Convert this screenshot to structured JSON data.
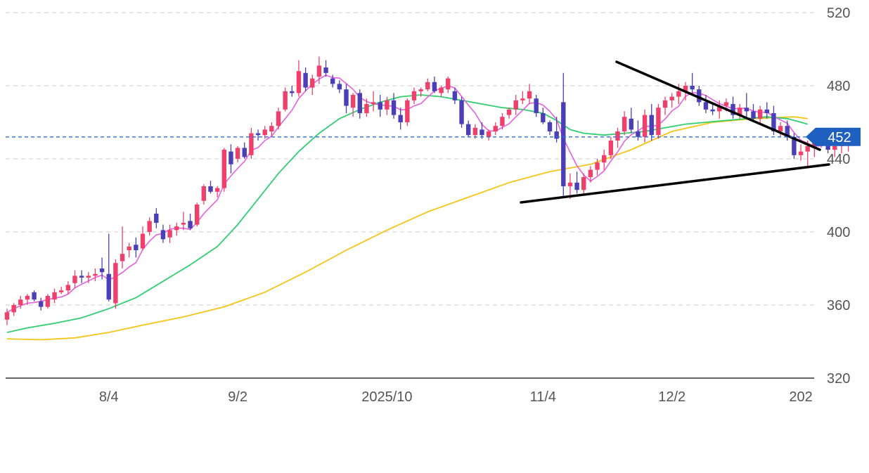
{
  "chart_data": {
    "type": "candlestick",
    "y_ticks": [
      320,
      360,
      400,
      440,
      480,
      520
    ],
    "x_tick_labels": [
      {
        "label": "8/4",
        "index": 15
      },
      {
        "label": "9/2",
        "index": 34
      },
      {
        "label": "2025/10",
        "index": 56
      },
      {
        "label": "11/4",
        "index": 79
      },
      {
        "label": "12/2",
        "index": 98
      },
      {
        "label": "202",
        "index": 117
      }
    ],
    "last_price": 452,
    "grid": "horizontal-dashed",
    "colors": {
      "up": "#ef3f6b",
      "down": "#4a3fb8",
      "ma_short": "#e85fe0",
      "ma_mid": "#2fcf6f",
      "ma_long": "#f5c518",
      "last_price_line": "#2f6fd6",
      "last_price_badge": "#1f5fbf",
      "grid": "#cccccc",
      "trendline": "#000000"
    },
    "candles": [
      [
        352,
        358,
        349,
        356
      ],
      [
        356,
        361,
        354,
        360
      ],
      [
        360,
        365,
        358,
        363
      ],
      [
        363,
        366,
        360,
        365
      ],
      [
        367,
        368,
        362,
        363
      ],
      [
        362,
        364,
        357,
        359
      ],
      [
        359,
        366,
        358,
        365
      ],
      [
        363,
        369,
        361,
        367
      ],
      [
        367,
        370,
        366,
        368
      ],
      [
        368,
        373,
        366,
        371
      ],
      [
        372,
        379,
        369,
        376
      ],
      [
        376,
        379,
        372,
        375
      ],
      [
        375,
        378,
        372,
        376
      ],
      [
        376,
        380,
        373,
        377
      ],
      [
        380,
        386,
        374,
        378
      ],
      [
        377,
        399,
        362,
        363
      ],
      [
        361,
        385,
        358,
        383
      ],
      [
        384,
        403,
        380,
        388
      ],
      [
        390,
        394,
        386,
        392
      ],
      [
        393,
        397,
        386,
        390
      ],
      [
        391,
        403,
        390,
        399
      ],
      [
        400,
        408,
        398,
        406
      ],
      [
        410,
        413,
        402,
        405
      ],
      [
        401,
        404,
        394,
        396
      ],
      [
        397,
        404,
        394,
        401
      ],
      [
        401,
        405,
        398,
        403
      ],
      [
        404,
        411,
        401,
        405
      ],
      [
        406,
        410,
        401,
        402
      ],
      [
        404,
        416,
        403,
        415
      ],
      [
        417,
        426,
        415,
        425
      ],
      [
        425,
        428,
        421,
        422
      ],
      [
        422,
        425,
        419,
        424
      ],
      [
        424,
        446,
        422,
        445
      ],
      [
        444,
        448,
        432,
        437
      ],
      [
        440,
        447,
        438,
        446
      ],
      [
        446,
        449,
        440,
        441
      ],
      [
        442,
        457,
        440,
        454
      ],
      [
        454,
        456,
        450,
        453
      ],
      [
        453,
        458,
        451,
        456
      ],
      [
        455,
        460,
        452,
        458
      ],
      [
        458,
        468,
        456,
        466
      ],
      [
        467,
        479,
        466,
        477
      ],
      [
        477,
        480,
        474,
        476
      ],
      [
        476,
        494,
        474,
        488
      ],
      [
        487,
        490,
        477,
        479
      ],
      [
        479,
        486,
        475,
        484
      ],
      [
        485,
        496,
        481,
        491
      ],
      [
        490,
        494,
        485,
        487
      ],
      [
        484,
        486,
        479,
        481
      ],
      [
        481,
        483,
        476,
        478
      ],
      [
        478,
        481,
        465,
        469
      ],
      [
        468,
        476,
        463,
        475
      ],
      [
        476,
        478,
        462,
        465
      ],
      [
        465,
        473,
        463,
        470
      ],
      [
        470,
        477,
        466,
        471
      ],
      [
        471,
        475,
        463,
        467
      ],
      [
        467,
        474,
        464,
        472
      ],
      [
        472,
        476,
        462,
        464
      ],
      [
        464,
        468,
        456,
        460
      ],
      [
        460,
        473,
        458,
        472
      ],
      [
        472,
        479,
        470,
        477
      ],
      [
        477,
        479,
        474,
        478
      ],
      [
        478,
        484,
        477,
        482
      ],
      [
        482,
        485,
        476,
        477
      ],
      [
        476,
        480,
        474,
        479
      ],
      [
        478,
        485,
        476,
        484
      ],
      [
        477,
        479,
        470,
        472
      ],
      [
        472,
        474,
        457,
        459
      ],
      [
        459,
        461,
        452,
        453
      ],
      [
        453,
        459,
        451,
        457
      ],
      [
        456,
        460,
        451,
        453
      ],
      [
        452,
        456,
        450,
        455
      ],
      [
        455,
        460,
        453,
        458
      ],
      [
        458,
        465,
        456,
        463
      ],
      [
        464,
        468,
        462,
        467
      ],
      [
        467,
        475,
        464,
        472
      ],
      [
        472,
        477,
        470,
        473
      ],
      [
        473,
        481,
        470,
        477
      ],
      [
        473,
        475,
        463,
        465
      ],
      [
        465,
        468,
        459,
        460
      ],
      [
        460,
        461,
        453,
        455
      ],
      [
        455,
        463,
        449,
        451
      ],
      [
        471,
        487,
        419,
        425
      ],
      [
        425,
        432,
        418,
        427
      ],
      [
        427,
        433,
        421,
        423
      ],
      [
        423,
        432,
        421,
        430
      ],
      [
        430,
        436,
        427,
        434
      ],
      [
        434,
        440,
        431,
        438
      ],
      [
        438,
        445,
        434,
        442
      ],
      [
        442,
        452,
        440,
        450
      ],
      [
        450,
        457,
        446,
        455
      ],
      [
        455,
        466,
        453,
        463
      ],
      [
        462,
        468,
        454,
        456
      ],
      [
        455,
        461,
        450,
        452
      ],
      [
        452,
        467,
        449,
        464
      ],
      [
        464,
        470,
        450,
        453
      ],
      [
        453,
        470,
        451,
        468
      ],
      [
        468,
        474,
        464,
        472
      ],
      [
        472,
        476,
        468,
        474
      ],
      [
        474,
        481,
        470,
        477
      ],
      [
        477,
        482,
        472,
        480
      ],
      [
        480,
        487,
        476,
        478
      ],
      [
        478,
        480,
        469,
        471
      ],
      [
        471,
        475,
        465,
        467
      ],
      [
        467,
        470,
        464,
        466
      ],
      [
        466,
        472,
        462,
        469
      ],
      [
        469,
        473,
        466,
        471
      ],
      [
        470,
        474,
        462,
        464
      ],
      [
        464,
        470,
        462,
        468
      ],
      [
        468,
        476,
        462,
        466
      ],
      [
        466,
        470,
        460,
        462
      ],
      [
        462,
        469,
        459,
        467
      ],
      [
        467,
        471,
        462,
        465
      ],
      [
        465,
        469,
        453,
        455
      ],
      [
        455,
        460,
        452,
        458
      ],
      [
        458,
        461,
        450,
        452
      ],
      [
        452,
        454,
        440,
        442
      ],
      [
        442,
        448,
        439,
        444
      ],
      [
        444,
        450,
        436,
        447
      ],
      [
        447,
        451,
        441,
        449
      ],
      [
        449,
        456,
        446,
        454
      ],
      [
        454,
        457,
        443,
        445
      ],
      [
        445,
        452,
        441,
        447
      ],
      [
        447,
        451,
        443,
        448
      ],
      [
        448,
        453,
        444,
        451
      ]
    ],
    "ma_mid": [
      [
        0,
        345
      ],
      [
        3,
        347.5
      ],
      [
        7,
        350
      ],
      [
        11,
        353
      ],
      [
        15,
        358
      ],
      [
        19,
        364
      ],
      [
        23,
        373
      ],
      [
        27,
        382
      ],
      [
        31,
        392
      ],
      [
        34,
        404
      ],
      [
        37,
        418
      ],
      [
        40,
        432
      ],
      [
        43,
        444
      ],
      [
        46,
        454
      ],
      [
        49,
        462
      ],
      [
        52,
        467
      ],
      [
        55,
        471
      ],
      [
        58,
        474
      ],
      [
        61,
        475
      ],
      [
        64,
        474
      ],
      [
        67,
        472
      ],
      [
        70,
        470
      ],
      [
        73,
        468
      ],
      [
        76,
        467
      ],
      [
        79,
        465
      ],
      [
        81,
        461
      ],
      [
        83,
        456
      ],
      [
        85,
        454
      ],
      [
        88,
        453
      ],
      [
        91,
        454
      ],
      [
        94,
        455
      ],
      [
        97,
        457
      ],
      [
        100,
        459
      ],
      [
        103,
        460
      ],
      [
        106,
        461
      ],
      [
        109,
        462
      ],
      [
        112,
        463
      ],
      [
        115,
        462
      ],
      [
        118,
        459
      ]
    ],
    "ma_long": [
      [
        0,
        341.5
      ],
      [
        5,
        341
      ],
      [
        10,
        342
      ],
      [
        15,
        345
      ],
      [
        20,
        349
      ],
      [
        26,
        353.5
      ],
      [
        32,
        359
      ],
      [
        38,
        367
      ],
      [
        44,
        378
      ],
      [
        50,
        390
      ],
      [
        56,
        401
      ],
      [
        62,
        411
      ],
      [
        68,
        419
      ],
      [
        74,
        427
      ],
      [
        80,
        433
      ],
      [
        86,
        437
      ],
      [
        92,
        445
      ],
      [
        98,
        455
      ],
      [
        104,
        460
      ],
      [
        110,
        462
      ],
      [
        116,
        463
      ],
      [
        118,
        462
      ]
    ]
  }
}
